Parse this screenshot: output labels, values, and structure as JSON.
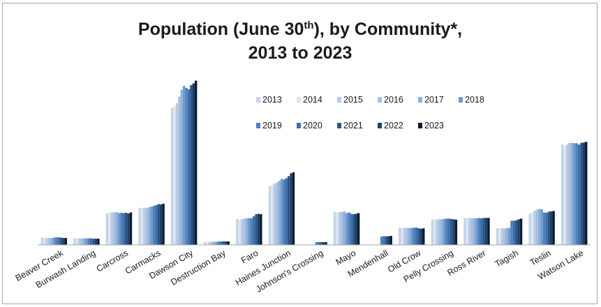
{
  "chart_data": {
    "type": "bar",
    "title_line1_a": "Population (June 30",
    "title_sup": "th",
    "title_line1_b": "), by Community*,",
    "title_line2": "2013 to 2023",
    "xlabel": "",
    "ylabel": "",
    "ylim": [
      0,
      2300
    ],
    "grid": false,
    "legend_position": "top-right",
    "categories": [
      "Beaver Creek",
      "Burwash Landing",
      "Carcross",
      "Carmacks",
      "Dawson City",
      "Destruction Bay",
      "Faro",
      "Haines Junction",
      "Johnson's Crossing",
      "Mayo",
      "Mendenhall",
      "Old Crow",
      "Pelly Crossing",
      "Ross River",
      "Tagish",
      "Teslin",
      "Watson Lake"
    ],
    "series": [
      {
        "name": "2013",
        "color": "#c5d3e8",
        "values": [
          105,
          95,
          455,
          530,
          1980,
          40,
          375,
          845,
          0,
          480,
          0,
          250,
          365,
          385,
          240,
          450,
          1450
        ]
      },
      {
        "name": "2014",
        "color": "#dce6f2",
        "values": [
          105,
          95,
          470,
          535,
          2010,
          40,
          365,
          865,
          0,
          465,
          0,
          250,
          375,
          390,
          240,
          470,
          1430
        ]
      },
      {
        "name": "2015",
        "color": "#b9cbe4",
        "values": [
          100,
          95,
          475,
          540,
          2050,
          45,
          375,
          885,
          0,
          475,
          0,
          250,
          365,
          390,
          240,
          495,
          1450
        ]
      },
      {
        "name": "2016",
        "color": "#a9c0e0",
        "values": [
          100,
          95,
          470,
          530,
          2145,
          45,
          380,
          900,
          0,
          475,
          0,
          245,
          370,
          385,
          235,
          510,
          1475
        ]
      },
      {
        "name": "2017",
        "color": "#8fb0d9",
        "values": [
          100,
          95,
          475,
          545,
          2245,
          45,
          385,
          925,
          0,
          485,
          0,
          245,
          370,
          385,
          245,
          520,
          1475
        ]
      },
      {
        "name": "2018",
        "color": "#6b9bd0",
        "values": [
          105,
          95,
          460,
          555,
          2300,
          45,
          390,
          955,
          0,
          460,
          0,
          245,
          375,
          385,
          245,
          515,
          1470
        ]
      },
      {
        "name": "2019",
        "color": "#4f80bd",
        "values": [
          110,
          95,
          465,
          565,
          2270,
          50,
          385,
          945,
          40,
          470,
          120,
          250,
          380,
          390,
          350,
          470,
          1470
        ]
      },
      {
        "name": "2020",
        "color": "#3e6fa8",
        "values": [
          110,
          95,
          460,
          575,
          2250,
          50,
          415,
          965,
          40,
          450,
          125,
          250,
          380,
          385,
          350,
          465,
          1450
        ]
      },
      {
        "name": "2021",
        "color": "#2c5689",
        "values": [
          105,
          90,
          465,
          590,
          2310,
          50,
          445,
          995,
          40,
          445,
          125,
          240,
          375,
          390,
          355,
          480,
          1475
        ]
      },
      {
        "name": "2022",
        "color": "#1e3f66",
        "values": [
          100,
          90,
          455,
          585,
          2335,
          50,
          450,
          1035,
          40,
          450,
          125,
          235,
          370,
          390,
          370,
          485,
          1480
        ]
      },
      {
        "name": "2023",
        "color": "#0d1b2e",
        "values": [
          100,
          90,
          470,
          595,
          2375,
          50,
          445,
          1050,
          40,
          460,
          130,
          240,
          365,
          390,
          380,
          490,
          1490
        ]
      }
    ]
  }
}
